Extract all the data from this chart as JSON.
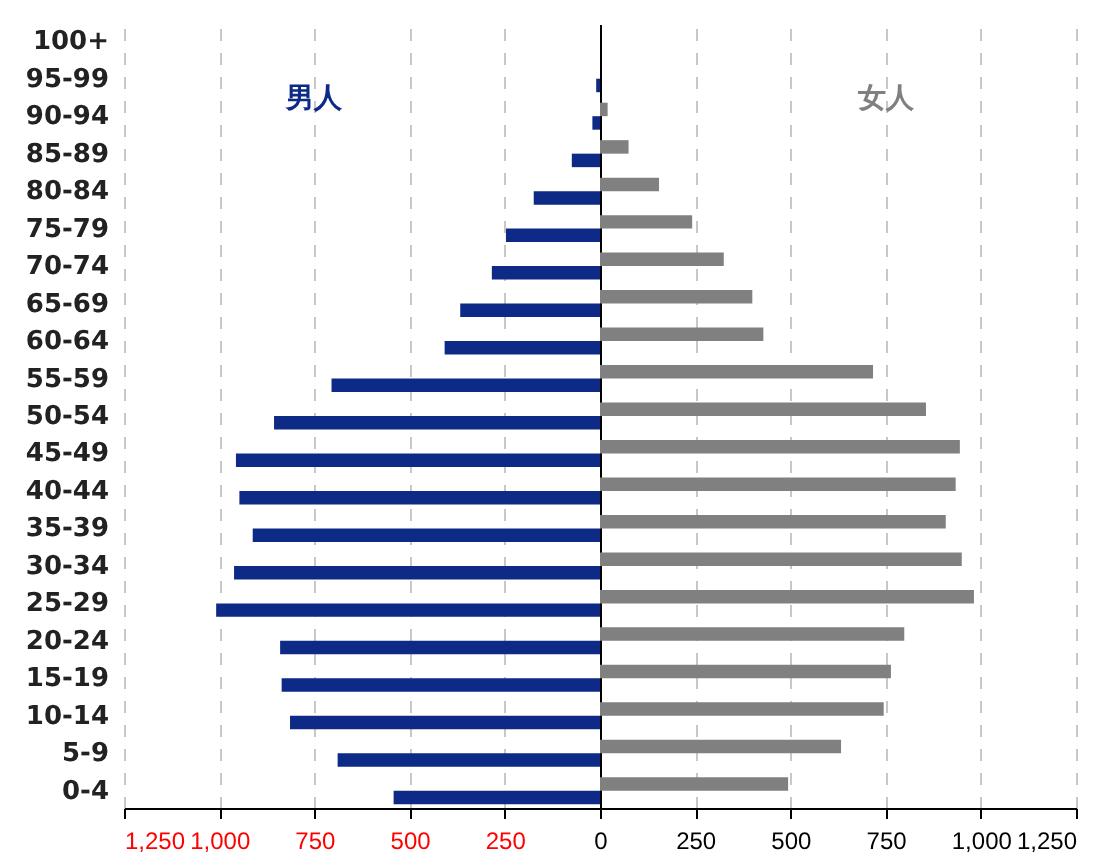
{
  "chart_data": {
    "type": "bar",
    "orientation": "horizontal",
    "categories": [
      "100+",
      "95-99",
      "90-94",
      "85-89",
      "80-84",
      "75-79",
      "70-74",
      "65-69",
      "60-64",
      "55-59",
      "50-54",
      "45-49",
      "40-44",
      "35-39",
      "30-34",
      "25-29",
      "20-24",
      "15-19",
      "10-14",
      "5-9",
      "0-4"
    ],
    "series": [
      {
        "name": "女人",
        "color": "#808080",
        "values": [
          0,
          0,
          20,
          75,
          155,
          242,
          325,
          400,
          429,
          717,
          856,
          945,
          934,
          908,
          950,
          982,
          799,
          764,
          745,
          633,
          494
        ]
      },
      {
        "name": "男人",
        "color": "#0d2a87",
        "values": [
          0,
          -10,
          -20,
          -74,
          -174,
          -247,
          -284,
          -367,
          -408,
          -705,
          -856,
          -956,
          -947,
          -912,
          -961,
          -1008,
          -840,
          -836,
          -814,
          -689,
          -542
        ]
      }
    ],
    "xlim": [
      -1250,
      1250
    ],
    "xticks": [
      {
        "value": -1250,
        "label": "1,250"
      },
      {
        "value": -1000,
        "label": "1,000"
      },
      {
        "value": -750,
        "label": "750"
      },
      {
        "value": -500,
        "label": "500"
      },
      {
        "value": -250,
        "label": "250"
      },
      0,
      250,
      500,
      750,
      {
        "value": 1000,
        "label": "1,000"
      },
      {
        "value": 1250,
        "label": "1,250"
      }
    ],
    "grid": "x"
  }
}
